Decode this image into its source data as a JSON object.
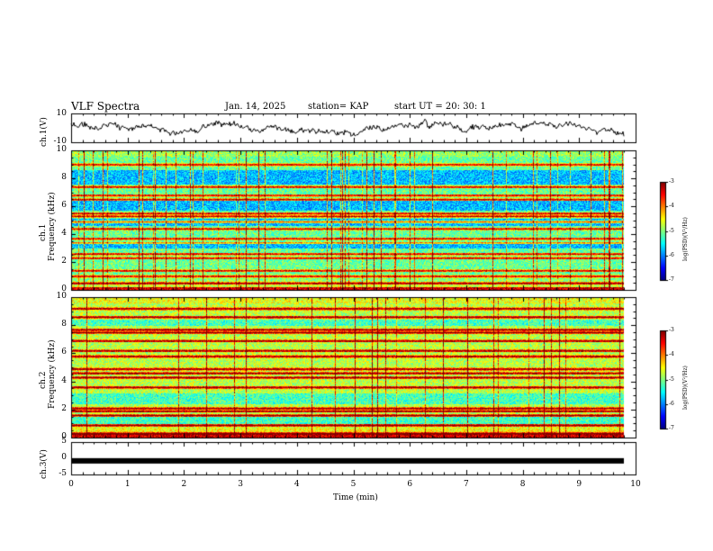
{
  "header": {
    "title": "VLF Spectra",
    "date": "Jan. 14, 2025",
    "station": "station= KAP",
    "start": "start  UT =   20: 30: 1"
  },
  "chart_data": [
    {
      "type": "line",
      "name": "ch1-waveform",
      "ylabel": "ch.1(V)",
      "ylim": [
        -10,
        10
      ],
      "yticklabels": [
        "10",
        "-10"
      ],
      "xlim": [
        0,
        10
      ],
      "color": "#000000"
    },
    {
      "type": "heatmap",
      "name": "ch1-spectrogram",
      "ylabel_channel": "ch.1",
      "ylabel": "Frequency (kHz)",
      "ylim": [
        0,
        10
      ],
      "yticklabels": [
        "0",
        "2",
        "4",
        "6",
        "8",
        "10"
      ],
      "xlim": [
        0,
        9.85
      ],
      "colorbar": {
        "label": "log(PSD)(V²/Hz)",
        "range": [
          -7,
          -3
        ],
        "ticklabels": [
          "-3",
          "-4",
          "-5",
          "-6",
          "-7"
        ]
      },
      "bands_khz": [
        0.5,
        1.0,
        1.4,
        2.3,
        2.6,
        3.4,
        3.7,
        4.4,
        4.9,
        5.3,
        5.5,
        6.5,
        6.8,
        7.4,
        9.0
      ],
      "quiet_khz": [
        [
          3.0,
          3.5
        ],
        [
          5.7,
          6.4
        ],
        [
          4.6,
          5.1
        ],
        [
          7.6,
          8.6
        ]
      ]
    },
    {
      "type": "heatmap",
      "name": "ch2-spectrogram",
      "ylabel_channel": "ch.2",
      "ylabel": "Frequency (kHz)",
      "ylim": [
        0,
        10
      ],
      "yticklabels": [
        "0",
        "2",
        "4",
        "6",
        "8",
        "10"
      ],
      "xlim": [
        0,
        9.85
      ],
      "colorbar": {
        "label": "log(PSD)(V²/Hz)",
        "range": [
          -7,
          -3
        ],
        "ticklabels": [
          "-3",
          "-4",
          "-5",
          "-6",
          "-7"
        ]
      },
      "bands_khz": [
        0.3,
        0.9,
        1.6,
        1.9,
        2.1,
        3.6,
        4.3,
        4.6,
        4.9,
        5.8,
        6.2,
        6.9,
        7.5,
        7.7,
        8.6,
        9.2
      ],
      "quiet_khz": [
        [
          1.0,
          1.5
        ],
        [
          2.4,
          3.2
        ],
        [
          8.0,
          8.4
        ]
      ]
    },
    {
      "type": "line",
      "name": "ch3-trace",
      "ylabel": "ch.3(V)",
      "ylim": [
        -5,
        5
      ],
      "yticklabels": [
        "5",
        "0",
        "-5"
      ],
      "xlim": [
        0,
        9.85
      ],
      "level": -0.8,
      "color": "#000000"
    }
  ],
  "xaxis": {
    "label": "Time  (min)",
    "range": [
      0,
      10
    ],
    "ticklabels": [
      "0",
      "1",
      "2",
      "3",
      "4",
      "5",
      "6",
      "7",
      "8",
      "9",
      "10"
    ]
  }
}
